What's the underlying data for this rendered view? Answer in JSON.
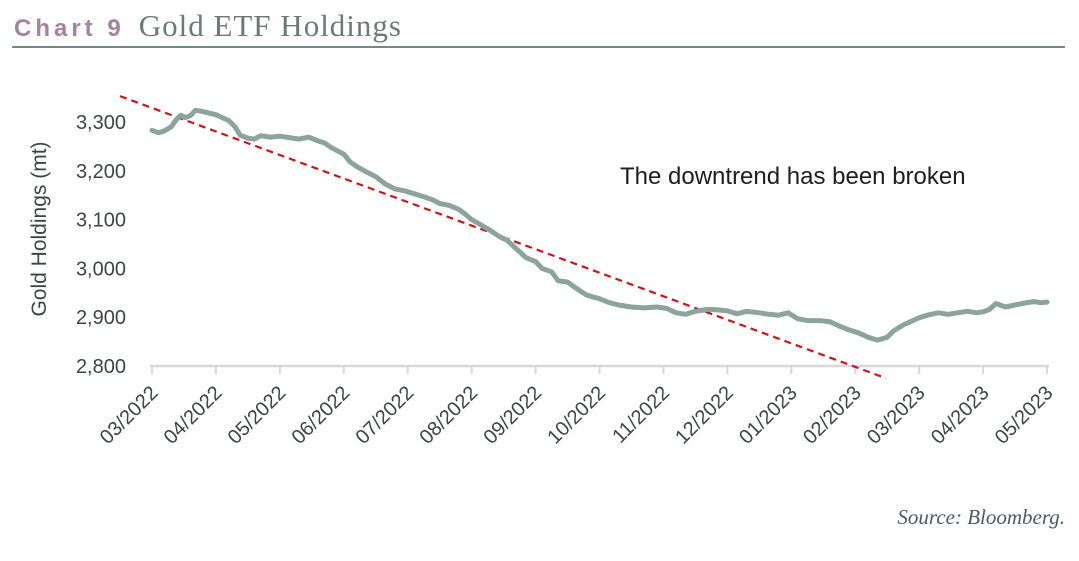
{
  "header": {
    "label": "Chart 9",
    "title": "Gold ETF Holdings"
  },
  "annotation": "The downtrend has been broken",
  "source": "Source: Bloomberg.",
  "colors": {
    "accent_label": "#a6839c",
    "title_text": "#6e787a",
    "header_rule": "#6f8b89",
    "series_line": "#8ba49c",
    "trend_line": "#cc1519",
    "axis_line": "#d8d8d8",
    "tick_text": "#3f4347",
    "annotation_text": "#1e1e1e",
    "source_text": "#4c5a68"
  },
  "chart_data": {
    "type": "line",
    "title": "Gold ETF Holdings",
    "ylabel": "Gold Holdings (mt)",
    "xlabel": "",
    "ylim": [
      2800,
      3300
    ],
    "grid": false,
    "legend": "none",
    "y_ticks": [
      {
        "value": 3300,
        "label": "3,300"
      },
      {
        "value": 3200,
        "label": "3,200"
      },
      {
        "value": 3100,
        "label": "3,100"
      },
      {
        "value": 3000,
        "label": "3,000"
      },
      {
        "value": 2900,
        "label": "2,900"
      },
      {
        "value": 2800,
        "label": "2,800"
      }
    ],
    "categories": [
      "03/2022",
      "04/2022",
      "05/2022",
      "06/2022",
      "07/2022",
      "08/2022",
      "09/2022",
      "10/2022",
      "11/2022",
      "12/2022",
      "01/2023",
      "02/2023",
      "03/2023",
      "04/2023",
      "05/2023"
    ],
    "series": [
      {
        "name": "Gold ETF Holdings (mt)",
        "monthly_values": [
          3283,
          3315,
          3271,
          3234,
          3159,
          3100,
          3014,
          2938,
          2919,
          2913,
          2908,
          2870,
          2899,
          2911,
          2931
        ],
        "points_month_value": [
          [
            0.0,
            3283
          ],
          [
            0.1,
            3278
          ],
          [
            0.18,
            3281
          ],
          [
            0.3,
            3290
          ],
          [
            0.38,
            3305
          ],
          [
            0.45,
            3314
          ],
          [
            0.52,
            3309
          ],
          [
            0.6,
            3313
          ],
          [
            0.68,
            3324
          ],
          [
            0.78,
            3322
          ],
          [
            0.9,
            3318
          ],
          [
            1.0,
            3315
          ],
          [
            1.1,
            3309
          ],
          [
            1.2,
            3303
          ],
          [
            1.3,
            3290
          ],
          [
            1.38,
            3273
          ],
          [
            1.5,
            3267
          ],
          [
            1.6,
            3265
          ],
          [
            1.7,
            3272
          ],
          [
            1.85,
            3269
          ],
          [
            2.0,
            3271
          ],
          [
            2.15,
            3268
          ],
          [
            2.3,
            3265
          ],
          [
            2.45,
            3269
          ],
          [
            2.6,
            3261
          ],
          [
            2.7,
            3257
          ],
          [
            2.8,
            3248
          ],
          [
            2.9,
            3241
          ],
          [
            3.0,
            3234
          ],
          [
            3.1,
            3218
          ],
          [
            3.2,
            3209
          ],
          [
            3.35,
            3198
          ],
          [
            3.5,
            3188
          ],
          [
            3.65,
            3173
          ],
          [
            3.8,
            3163
          ],
          [
            3.95,
            3159
          ],
          [
            4.1,
            3153
          ],
          [
            4.25,
            3147
          ],
          [
            4.4,
            3140
          ],
          [
            4.5,
            3133
          ],
          [
            4.65,
            3129
          ],
          [
            4.8,
            3121
          ],
          [
            4.9,
            3111
          ],
          [
            5.0,
            3100
          ],
          [
            5.15,
            3089
          ],
          [
            5.3,
            3077
          ],
          [
            5.45,
            3064
          ],
          [
            5.55,
            3058
          ],
          [
            5.7,
            3040
          ],
          [
            5.85,
            3022
          ],
          [
            6.0,
            3014
          ],
          [
            6.1,
            3000
          ],
          [
            6.25,
            2993
          ],
          [
            6.35,
            2975
          ],
          [
            6.5,
            2972
          ],
          [
            6.65,
            2958
          ],
          [
            6.8,
            2945
          ],
          [
            7.0,
            2938
          ],
          [
            7.15,
            2930
          ],
          [
            7.3,
            2925
          ],
          [
            7.5,
            2921
          ],
          [
            7.7,
            2919
          ],
          [
            7.9,
            2921
          ],
          [
            8.05,
            2918
          ],
          [
            8.2,
            2909
          ],
          [
            8.35,
            2906
          ],
          [
            8.5,
            2912
          ],
          [
            8.7,
            2916
          ],
          [
            8.85,
            2915
          ],
          [
            9.0,
            2913
          ],
          [
            9.15,
            2907
          ],
          [
            9.3,
            2912
          ],
          [
            9.5,
            2909
          ],
          [
            9.65,
            2906
          ],
          [
            9.8,
            2904
          ],
          [
            9.95,
            2909
          ],
          [
            10.1,
            2897
          ],
          [
            10.25,
            2893
          ],
          [
            10.45,
            2893
          ],
          [
            10.6,
            2891
          ],
          [
            10.75,
            2882
          ],
          [
            10.9,
            2874
          ],
          [
            11.05,
            2868
          ],
          [
            11.2,
            2859
          ],
          [
            11.35,
            2853
          ],
          [
            11.5,
            2859
          ],
          [
            11.6,
            2872
          ],
          [
            11.75,
            2884
          ],
          [
            11.9,
            2893
          ],
          [
            12.0,
            2899
          ],
          [
            12.15,
            2905
          ],
          [
            12.3,
            2909
          ],
          [
            12.45,
            2906
          ],
          [
            12.6,
            2909
          ],
          [
            12.75,
            2912
          ],
          [
            12.9,
            2909
          ],
          [
            13.0,
            2911
          ],
          [
            13.1,
            2916
          ],
          [
            13.2,
            2928
          ],
          [
            13.35,
            2921
          ],
          [
            13.5,
            2925
          ],
          [
            13.65,
            2929
          ],
          [
            13.8,
            2932
          ],
          [
            13.9,
            2930
          ],
          [
            14.0,
            2931
          ]
        ]
      }
    ],
    "trendline": {
      "name": "downtrend line",
      "style": "dashed",
      "from": {
        "month_index": -0.5,
        "value": 3353
      },
      "to": {
        "month_index": 11.48,
        "value": 2775
      }
    },
    "annotation": {
      "text": "The downtrend has been broken"
    }
  }
}
